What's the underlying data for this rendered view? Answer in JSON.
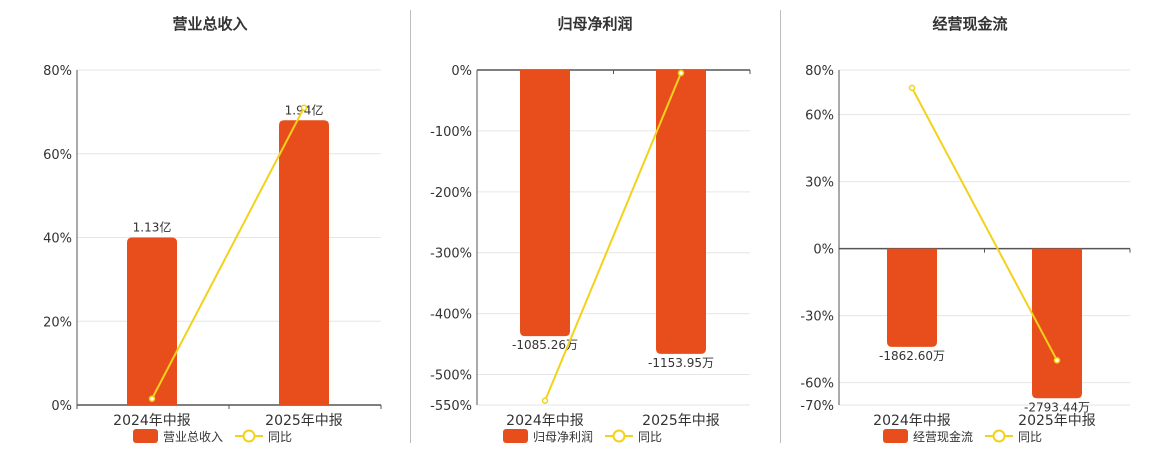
{
  "colors": {
    "bar": "#e84e1b",
    "line": "#f2d21b",
    "grid": "#e6e6e6",
    "axis": "#555555",
    "text": "#333333"
  },
  "chart_data": [
    {
      "type": "bar",
      "title": "营业总收入",
      "categories": [
        "2024年中报",
        "2025年中报"
      ],
      "series": [
        {
          "name": "营业总收入",
          "type": "bar",
          "values": [
            40,
            68
          ],
          "labels": [
            "1.13亿",
            "1.94亿"
          ]
        },
        {
          "name": "同比",
          "type": "line",
          "values": [
            1.5,
            71
          ]
        }
      ],
      "ylim": [
        0,
        80
      ],
      "yticks": [
        0,
        20,
        40,
        60,
        80
      ],
      "ytick_labels": [
        "0%",
        "20%",
        "40%",
        "60%",
        "80%"
      ],
      "legend": "bottom-center",
      "grid": true
    },
    {
      "type": "bar",
      "title": "归母净利润",
      "categories": [
        "2024年中报",
        "2025年中报"
      ],
      "series": [
        {
          "name": "归母净利润",
          "type": "bar",
          "values": [
            -437,
            -466
          ],
          "labels": [
            "-1085.26万",
            "-1153.95万"
          ]
        },
        {
          "name": "同比",
          "type": "line",
          "values": [
            -543,
            -5
          ]
        }
      ],
      "ylim": [
        -550,
        0
      ],
      "yticks": [
        0,
        -100,
        -200,
        -300,
        -400,
        -500,
        -550
      ],
      "ytick_labels": [
        "0%",
        "-100%",
        "-200%",
        "-300%",
        "-400%",
        "-500%",
        "-550%"
      ],
      "legend": "bottom-center",
      "grid": true
    },
    {
      "type": "bar",
      "title": "经营现金流",
      "categories": [
        "2024年中报",
        "2025年中报"
      ],
      "series": [
        {
          "name": "经营现金流",
          "type": "bar",
          "values": [
            -44,
            -67
          ],
          "labels": [
            "-1862.60万",
            "-2793.44万"
          ]
        },
        {
          "name": "同比",
          "type": "line",
          "values": [
            72,
            -50
          ]
        }
      ],
      "ylim": [
        -70,
        80
      ],
      "yticks": [
        80,
        60,
        30,
        0,
        -30,
        -60,
        -70
      ],
      "ytick_labels": [
        "80%",
        "60%",
        "30%",
        "0%",
        "-30%",
        "-60%",
        "-70%"
      ],
      "legend": "bottom-center",
      "grid": true
    }
  ]
}
